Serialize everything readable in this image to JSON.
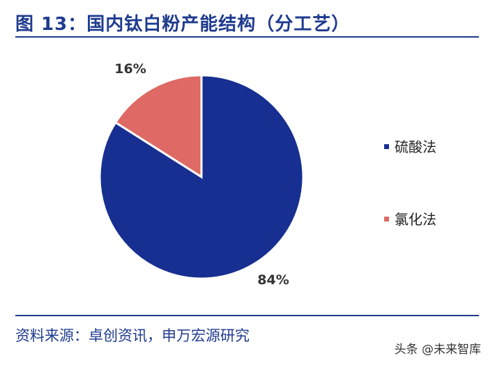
{
  "title": "图 13：国内钛白粉产能结构（分工艺）",
  "source": "资料来源：卓创资讯，申万宏源研究",
  "watermark": "头条 @未来智库",
  "colors": {
    "title": "#1f3b8f",
    "sulfuric": "#172f91",
    "chloride": "#df6964"
  },
  "chart_data": {
    "type": "pie",
    "title": "",
    "slices": [
      {
        "name": "硫酸法",
        "value": 84,
        "label": "84%",
        "color": "#172f91"
      },
      {
        "name": "氯化法",
        "value": 16,
        "label": "16%",
        "color": "#df6964"
      }
    ],
    "legend": {
      "placement": "right",
      "entries": [
        "硫酸法",
        "氯化法"
      ]
    },
    "start_angle": "12 o'clock",
    "direction": "clockwise"
  }
}
